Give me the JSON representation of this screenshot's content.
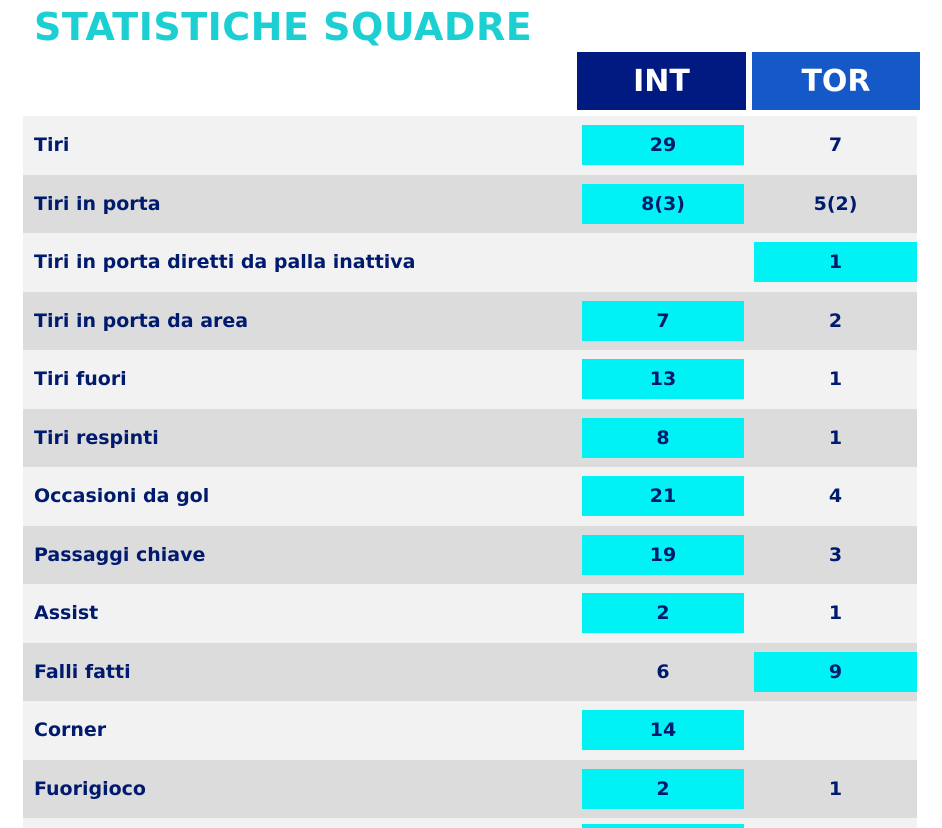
{
  "title": "STATISTICHE SQUADRE",
  "teams": {
    "home": "INT",
    "away": "TOR"
  },
  "colors": {
    "title": "#1ccfd3",
    "home_header": "#001a82",
    "away_header": "#1559c8",
    "highlight": "#00f2f5",
    "text": "#001a6e"
  },
  "stats": [
    {
      "label": "Tiri",
      "home": "29",
      "away": "7",
      "leader": "home"
    },
    {
      "label": "Tiri in porta",
      "home": "8(3)",
      "away": "5(2)",
      "leader": "home"
    },
    {
      "label": "Tiri in porta diretti da palla inattiva",
      "home": "",
      "away": "1",
      "leader": "away"
    },
    {
      "label": "Tiri in porta da area",
      "home": "7",
      "away": "2",
      "leader": "home"
    },
    {
      "label": "Tiri fuori",
      "home": "13",
      "away": "1",
      "leader": "home"
    },
    {
      "label": "Tiri respinti",
      "home": "8",
      "away": "1",
      "leader": "home"
    },
    {
      "label": "Occasioni da gol",
      "home": "21",
      "away": "4",
      "leader": "home"
    },
    {
      "label": "Passaggi chiave",
      "home": "19",
      "away": "3",
      "leader": "home"
    },
    {
      "label": "Assist",
      "home": "2",
      "away": "1",
      "leader": "home"
    },
    {
      "label": "Falli fatti",
      "home": "6",
      "away": "9",
      "leader": "away"
    },
    {
      "label": "Corner",
      "home": "14",
      "away": "",
      "leader": "home"
    },
    {
      "label": "Fuorigioco",
      "home": "2",
      "away": "1",
      "leader": "home"
    }
  ]
}
